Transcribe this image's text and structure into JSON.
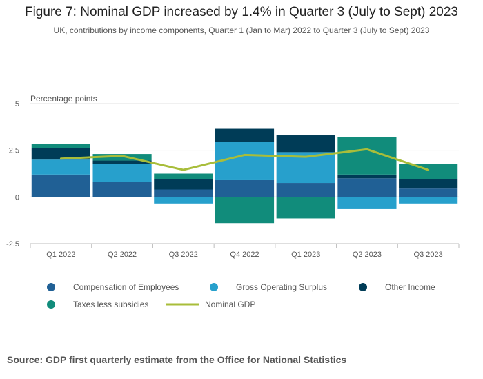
{
  "title": "Figure 7: Nominal GDP increased by 1.4% in Quarter 3 (July to Sept) 2023",
  "subtitle": "UK, contributions by income components, Quarter 1 (Jan to Mar) 2022 to Quarter 3 (July to Sept) 2023",
  "source": "Source: GDP first quarterly estimate from the Office for National Statistics",
  "chart_data": {
    "type": "bar",
    "stacked": true,
    "ylabel": "Percentage points",
    "ylim": [
      -2.5,
      5
    ],
    "yticks": [
      -2.5,
      0,
      2.5,
      5
    ],
    "ytick_labels": [
      "-2.5",
      "0",
      "2.5",
      "5"
    ],
    "grid": true,
    "legend_position": "bottom",
    "categories": [
      "Q1 2022",
      "Q2 2022",
      "Q3 2022",
      "Q4 2022",
      "Q1 2023",
      "Q2 2023",
      "Q3 2023"
    ],
    "series": [
      {
        "name": "Compensation of Employees",
        "kind": "bar",
        "color": "#206095",
        "values": [
          1.2,
          0.8,
          0.4,
          0.9,
          0.75,
          1.0,
          0.45
        ]
      },
      {
        "name": "Gross Operating Surplus",
        "kind": "bar",
        "color": "#27a0cc",
        "values": [
          0.8,
          0.95,
          -0.35,
          2.05,
          1.65,
          -0.65,
          -0.35
        ]
      },
      {
        "name": "Other Income",
        "kind": "bar",
        "color": "#003c57",
        "values": [
          0.6,
          0.2,
          0.55,
          0.7,
          0.9,
          0.2,
          0.5
        ]
      },
      {
        "name": "Taxes less subsidies",
        "kind": "bar",
        "color": "#118c7b",
        "values": [
          0.25,
          0.35,
          0.3,
          -1.4,
          -1.15,
          2.0,
          0.8
        ]
      },
      {
        "name": "Nominal GDP",
        "kind": "line",
        "color": "#a8bd3a",
        "values": [
          2.05,
          2.2,
          1.45,
          2.25,
          2.15,
          2.55,
          1.45
        ]
      }
    ]
  }
}
